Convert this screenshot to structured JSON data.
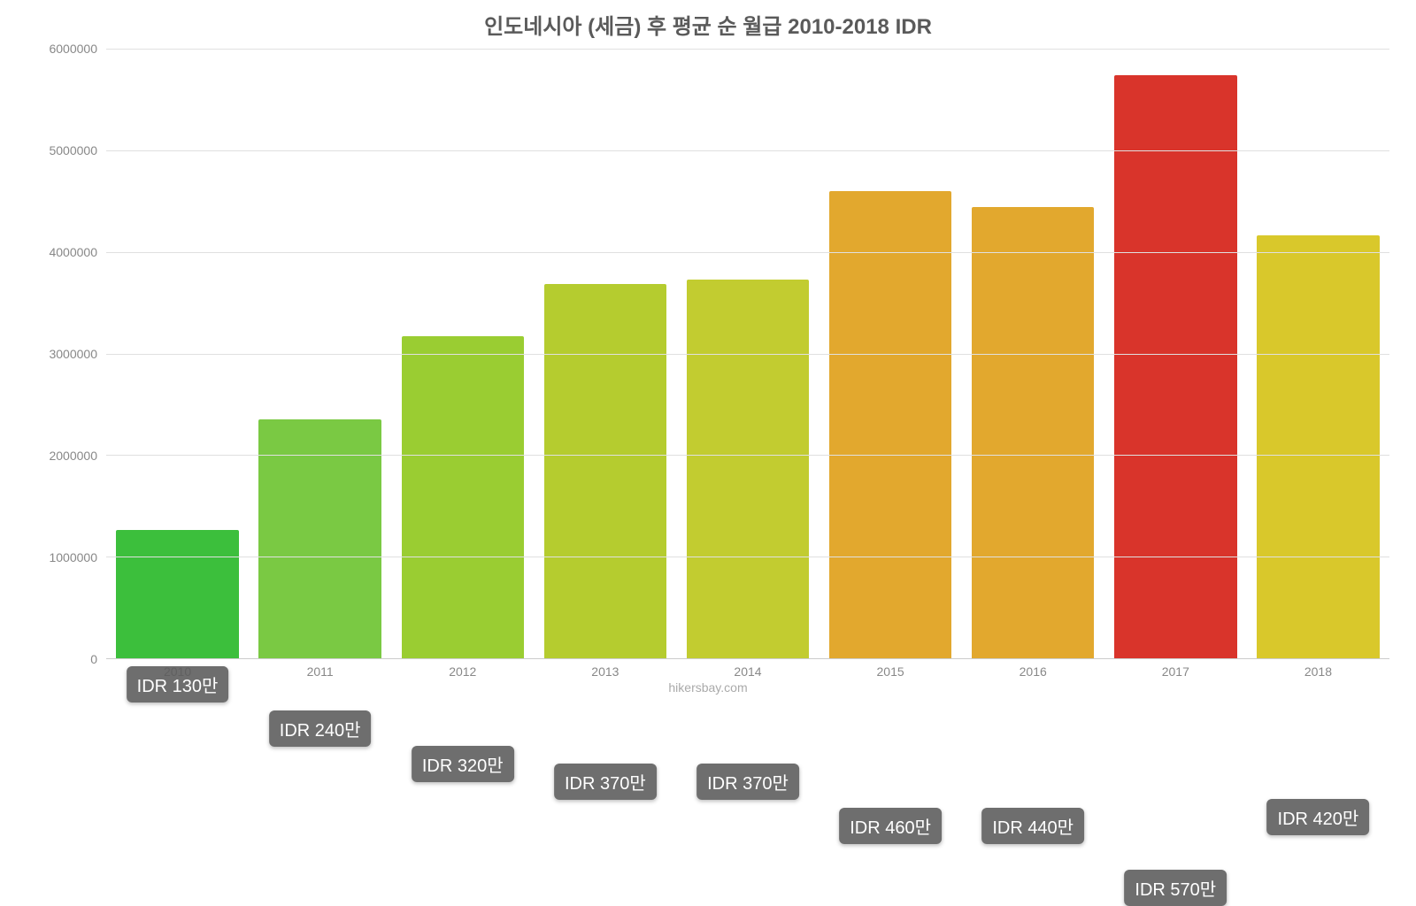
{
  "chart": {
    "type": "bar",
    "title": "인도네시아 (세금) 후 평균 순 월급 2010-2018 IDR",
    "title_color": "#5a5a5a",
    "title_fontsize": 24,
    "attribution": "hikersbay.com",
    "background_color": "#ffffff",
    "grid_color": "#e0e0e0",
    "axis_label_color": "#888888",
    "axis_label_fontsize": 14,
    "bar_width": 0.86,
    "ylim": [
      0,
      6000000
    ],
    "ytick_step": 1000000,
    "yticks": [
      {
        "value": 0,
        "label": "0"
      },
      {
        "value": 1000000,
        "label": "1000000"
      },
      {
        "value": 2000000,
        "label": "2000000"
      },
      {
        "value": 3000000,
        "label": "3000000"
      },
      {
        "value": 4000000,
        "label": "4000000"
      },
      {
        "value": 5000000,
        "label": "5000000"
      },
      {
        "value": 6000000,
        "label": "6000000"
      }
    ],
    "value_label_bg": "rgba(90,90,90,0.88)",
    "value_label_color": "#ffffff",
    "value_label_fontsize": 20,
    "data": [
      {
        "category": "2010",
        "value": 1260000,
        "label": "IDR 130만",
        "color": "#3cbf3c",
        "label_offset": -50
      },
      {
        "category": "2011",
        "value": 2350000,
        "label": "IDR 240만",
        "color": "#7ac943",
        "label_offset": -100
      },
      {
        "category": "2012",
        "value": 3170000,
        "label": "IDR 320만",
        "color": "#9acd32",
        "label_offset": -140
      },
      {
        "category": "2013",
        "value": 3680000,
        "label": "IDR 370만",
        "color": "#b5cc2f",
        "label_offset": -160
      },
      {
        "category": "2014",
        "value": 3730000,
        "label": "IDR 370만",
        "color": "#c2cc30",
        "label_offset": -160
      },
      {
        "category": "2015",
        "value": 4600000,
        "label": "IDR 460만",
        "color": "#e2a82e",
        "label_offset": -210
      },
      {
        "category": "2016",
        "value": 4440000,
        "label": "IDR 440만",
        "color": "#e2a82e",
        "label_offset": -210
      },
      {
        "category": "2017",
        "value": 5740000,
        "label": "IDR 570만",
        "color": "#d9342b",
        "label_offset": -280
      },
      {
        "category": "2018",
        "value": 4160000,
        "label": "IDR 420만",
        "color": "#d9c82b",
        "label_offset": -200
      }
    ]
  }
}
